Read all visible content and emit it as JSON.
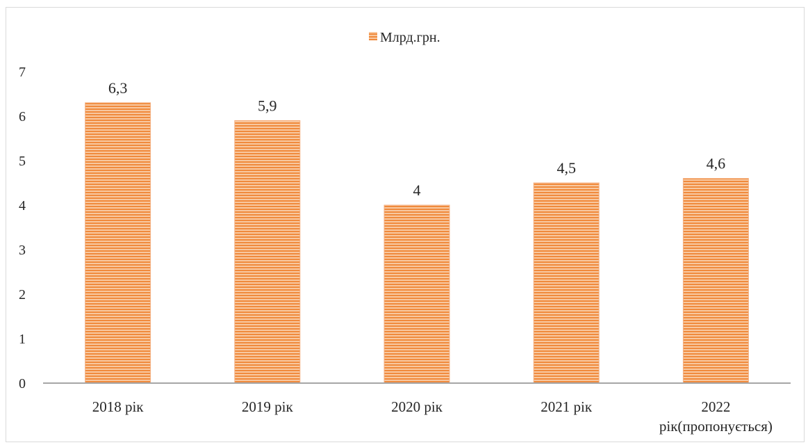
{
  "chart_data": {
    "type": "bar",
    "categories": [
      "2018 рік",
      "2019 рік",
      "2020 рік",
      "2021 рік",
      "2022 рік(пропонується)"
    ],
    "category_lines": [
      [
        "2018 рік"
      ],
      [
        "2019 рік"
      ],
      [
        "2020 рік"
      ],
      [
        "2021 рік"
      ],
      [
        "2022",
        "рік(пропонується)"
      ]
    ],
    "series": [
      {
        "name": "Млрд.грн.",
        "values": [
          6.3,
          5.9,
          4,
          4.5,
          4.6
        ],
        "labels": [
          "6,3",
          "5,9",
          "4",
          "4,5",
          "4,6"
        ]
      }
    ],
    "ylim": [
      0,
      7
    ],
    "yticks": [
      0,
      1,
      2,
      3,
      4,
      5,
      6,
      7
    ],
    "legend": "top-center",
    "grid": false,
    "colors": {
      "bar": "#f4b183",
      "stripe": "#f08a3c",
      "axis": "#a6a6a6"
    }
  }
}
